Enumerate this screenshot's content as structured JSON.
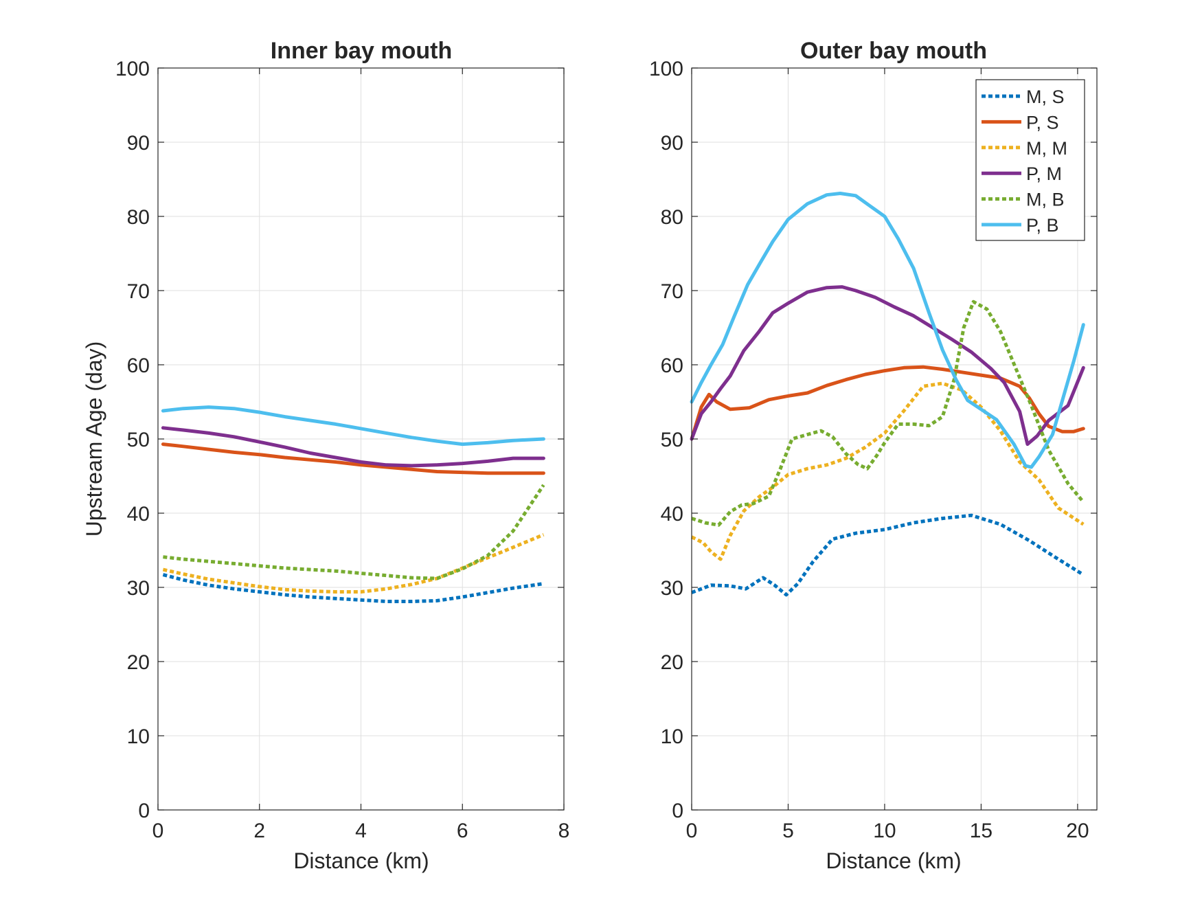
{
  "figure": {
    "ylabel": "Upstream Age (day)"
  },
  "chart_data": [
    {
      "type": "line",
      "title": "Inner bay mouth",
      "xlabel": "Distance (km)",
      "ylabel": "Upstream Age (day)",
      "xlim": [
        0,
        8
      ],
      "ylim": [
        0,
        100
      ],
      "xticks": [
        0,
        2,
        4,
        6,
        8
      ],
      "yticks": [
        0,
        10,
        20,
        30,
        40,
        50,
        60,
        70,
        80,
        90,
        100
      ],
      "grid": true,
      "legend": null,
      "series": [
        {
          "style": "dotted",
          "color": "#0072BD",
          "x": [
            0.1,
            0.5,
            1,
            1.5,
            2,
            2.5,
            3,
            3.5,
            4,
            4.5,
            5,
            5.5,
            6,
            6.5,
            7,
            7.6
          ],
          "y": [
            31.7,
            31.0,
            30.3,
            29.8,
            29.4,
            29.0,
            28.7,
            28.5,
            28.3,
            28.1,
            28.1,
            28.2,
            28.7,
            29.3,
            29.9,
            30.5
          ]
        },
        {
          "style": "solid",
          "color": "#D95319",
          "x": [
            0.1,
            0.5,
            1,
            1.5,
            2,
            2.5,
            3,
            3.5,
            4,
            4.5,
            5,
            5.5,
            6,
            6.5,
            7,
            7.6
          ],
          "y": [
            49.3,
            49.0,
            48.6,
            48.2,
            47.9,
            47.5,
            47.2,
            46.9,
            46.5,
            46.2,
            45.9,
            45.6,
            45.5,
            45.4,
            45.4,
            45.4
          ]
        },
        {
          "style": "dotted",
          "color": "#EDB120",
          "x": [
            0.1,
            0.5,
            1,
            1.5,
            2,
            2.5,
            3,
            3.5,
            4,
            4.5,
            5,
            5.5,
            6,
            6.5,
            7,
            7.6
          ],
          "y": [
            32.4,
            31.8,
            31.1,
            30.6,
            30.1,
            29.7,
            29.5,
            29.4,
            29.4,
            29.8,
            30.4,
            31.2,
            32.6,
            34.0,
            35.4,
            37.1
          ]
        },
        {
          "style": "solid",
          "color": "#7E2F8E",
          "x": [
            0.1,
            0.5,
            1,
            1.5,
            2,
            2.5,
            3,
            3.5,
            4,
            4.5,
            5,
            5.5,
            6,
            6.5,
            7,
            7.6
          ],
          "y": [
            51.5,
            51.2,
            50.8,
            50.3,
            49.6,
            48.9,
            48.1,
            47.5,
            46.9,
            46.5,
            46.4,
            46.5,
            46.7,
            47.0,
            47.4,
            47.4
          ]
        },
        {
          "style": "dotted",
          "color": "#77AC30",
          "x": [
            0.1,
            0.5,
            1,
            1.5,
            2,
            2.5,
            3,
            3.5,
            4,
            4.5,
            5,
            5.5,
            6,
            6.5,
            7,
            7.6
          ],
          "y": [
            34.1,
            33.8,
            33.5,
            33.2,
            32.9,
            32.6,
            32.4,
            32.2,
            31.9,
            31.6,
            31.3,
            31.2,
            32.5,
            34.3,
            37.6,
            43.8
          ]
        },
        {
          "style": "solid",
          "color": "#4DBEEE",
          "x": [
            0.1,
            0.5,
            1,
            1.5,
            2,
            2.5,
            3,
            3.5,
            4,
            4.5,
            5,
            5.5,
            6,
            6.5,
            7,
            7.6
          ],
          "y": [
            53.8,
            54.1,
            54.3,
            54.1,
            53.6,
            53.0,
            52.5,
            52.0,
            51.4,
            50.8,
            50.2,
            49.7,
            49.3,
            49.5,
            49.8,
            50.0
          ]
        }
      ]
    },
    {
      "type": "line",
      "title": "Outer bay mouth",
      "xlabel": "Distance (km)",
      "ylabel": "",
      "xlim": [
        0,
        21
      ],
      "ylim": [
        0,
        100
      ],
      "xticks": [
        0,
        5,
        10,
        15,
        20
      ],
      "yticks": [
        0,
        10,
        20,
        30,
        40,
        50,
        60,
        70,
        80,
        90,
        100
      ],
      "grid": true,
      "legend": {
        "position": "top-right",
        "entries": [
          {
            "label": "M, S",
            "style": "dotted",
            "color": "#0072BD"
          },
          {
            "label": "P, S",
            "style": "solid",
            "color": "#D95319"
          },
          {
            "label": "M, M",
            "style": "dotted",
            "color": "#EDB120"
          },
          {
            "label": "P, M",
            "style": "solid",
            "color": "#7E2F8E"
          },
          {
            "label": "M, B",
            "style": "dotted",
            "color": "#77AC30"
          },
          {
            "label": "P, B",
            "style": "solid",
            "color": "#4DBEEE"
          }
        ]
      },
      "series": [
        {
          "name": "M, S",
          "style": "dotted",
          "color": "#0072BD",
          "x": [
            0,
            1,
            2,
            2.8,
            3.7,
            4.3,
            4.9,
            5.5,
            6.3,
            7.3,
            8.5,
            10,
            11.5,
            13,
            14.5,
            16,
            17.5,
            19,
            20.3
          ],
          "y": [
            29.3,
            30.3,
            30.2,
            29.8,
            31.3,
            30.3,
            29.0,
            30.5,
            33.5,
            36.5,
            37.3,
            37.8,
            38.7,
            39.3,
            39.7,
            38.5,
            36.3,
            33.8,
            31.7
          ]
        },
        {
          "name": "P, S",
          "style": "solid",
          "color": "#D95319",
          "x": [
            0,
            0.5,
            0.9,
            1.3,
            2,
            3,
            4,
            5,
            6,
            7,
            8,
            9,
            10,
            11,
            12,
            13,
            14,
            15,
            16,
            17,
            17.5,
            18,
            18.5,
            19.2,
            19.8,
            20.3
          ],
          "y": [
            50.0,
            54.3,
            56.0,
            55.0,
            54.0,
            54.2,
            55.3,
            55.8,
            56.2,
            57.2,
            58.0,
            58.7,
            59.2,
            59.6,
            59.7,
            59.4,
            59.0,
            58.6,
            58.2,
            57.1,
            55.5,
            53.4,
            51.7,
            51.0,
            51.0,
            51.4
          ]
        },
        {
          "name": "P, M",
          "style": "solid",
          "color": "#7E2F8E",
          "x": [
            0,
            0.5,
            1,
            1.5,
            2,
            2.7,
            3.5,
            4.2,
            5,
            6,
            7,
            7.8,
            8.5,
            9.5,
            10.5,
            11.5,
            12.5,
            13.5,
            14.5,
            15.5,
            16.2,
            17,
            17.4,
            17.9,
            18.5,
            19.5,
            20.3
          ],
          "y": [
            50.0,
            53.4,
            55.0,
            56.8,
            58.5,
            61.9,
            64.5,
            67.0,
            68.3,
            69.8,
            70.4,
            70.5,
            70.0,
            69.1,
            67.8,
            66.6,
            65.0,
            63.4,
            61.7,
            59.5,
            57.6,
            53.7,
            49.3,
            50.4,
            52.5,
            54.5,
            59.6
          ]
        },
        {
          "name": "M, M",
          "style": "dotted",
          "color": "#EDB120",
          "x": [
            0,
            0.6,
            1,
            1.5,
            2,
            2.7,
            3.5,
            4.2,
            5,
            6,
            7,
            8,
            9,
            10,
            11,
            12,
            13,
            14,
            15,
            16,
            17,
            18,
            19,
            20.3
          ],
          "y": [
            36.8,
            36.0,
            34.8,
            33.8,
            37.0,
            40.3,
            42.2,
            43.5,
            45.2,
            46.0,
            46.5,
            47.4,
            48.9,
            50.8,
            53.8,
            57.1,
            57.5,
            56.6,
            54.3,
            51.1,
            46.9,
            44.5,
            40.7,
            38.5
          ]
        },
        {
          "name": "M, B",
          "style": "dotted",
          "color": "#77AC30",
          "x": [
            0,
            0.7,
            1.4,
            2,
            2.6,
            3.2,
            4,
            4.6,
            5.2,
            6,
            6.7,
            7.3,
            8,
            8.6,
            9.1,
            9.6,
            10,
            10.7,
            11.5,
            12.3,
            13,
            13.6,
            14.1,
            14.6,
            15.3,
            16,
            16.8,
            17.6,
            18.5,
            19.5,
            20.3
          ],
          "y": [
            39.3,
            38.7,
            38.4,
            40.2,
            41.1,
            41.3,
            42.3,
            46.0,
            50.0,
            50.6,
            51.1,
            50.3,
            48.0,
            46.6,
            46.0,
            47.8,
            49.5,
            52.0,
            52.0,
            51.8,
            53.0,
            58.0,
            65.0,
            68.5,
            67.5,
            64.5,
            59.5,
            54.5,
            48.5,
            44.0,
            41.5
          ]
        },
        {
          "name": "P, B",
          "style": "solid",
          "color": "#4DBEEE",
          "x": [
            0,
            0.5,
            1,
            1.6,
            2.2,
            2.9,
            3.5,
            4.2,
            5,
            6,
            7,
            7.7,
            8.5,
            9.3,
            10,
            10.7,
            11.5,
            12.3,
            13,
            13.7,
            14.3,
            15,
            15.8,
            16.7,
            17.3,
            17.6,
            18,
            18.7,
            19.3,
            19.8,
            20.3
          ],
          "y": [
            55.0,
            57.6,
            60.0,
            62.7,
            66.5,
            70.8,
            73.5,
            76.6,
            79.6,
            81.7,
            82.9,
            83.1,
            82.8,
            81.3,
            80.0,
            77.0,
            73.0,
            67.0,
            62.0,
            58.0,
            55.2,
            54.0,
            52.6,
            49.3,
            46.4,
            46.2,
            47.6,
            50.6,
            56.0,
            60.5,
            65.4
          ]
        }
      ]
    }
  ]
}
